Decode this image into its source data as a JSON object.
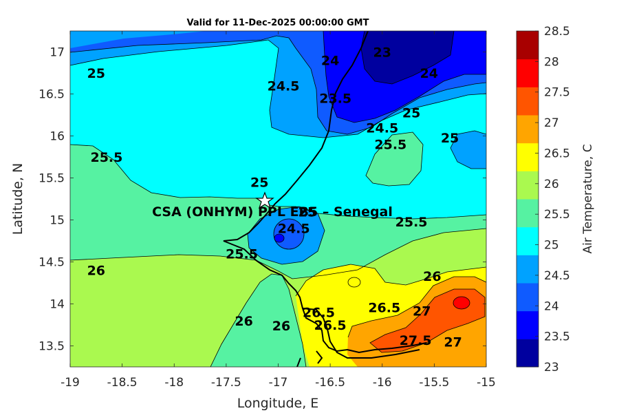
{
  "chart_data": {
    "type": "heatmap",
    "title": "Valid for 11-Dec-2025 00:00:00 GMT",
    "xlabel": "Longitude, E",
    "ylabel": "Latitude, N",
    "xlim": [
      -19,
      -15
    ],
    "ylim": [
      13.25,
      17.25
    ],
    "xticks": [
      "-19",
      "-18.5",
      "-18",
      "-17.5",
      "-17",
      "-16.5",
      "-16",
      "-15.5",
      "-15"
    ],
    "yticks": [
      "13.5",
      "14",
      "14.5",
      "15",
      "15.5",
      "16",
      "16.5",
      "17"
    ],
    "colorbar": {
      "label": "Air Temperature, C",
      "levels": [
        23,
        23.5,
        24,
        24.5,
        25,
        25.5,
        26,
        26.5,
        27,
        27.5,
        28,
        28.5
      ],
      "ticks": [
        "23",
        "23.5",
        "24",
        "24.5",
        "25",
        "25.5",
        "26",
        "26.5",
        "27",
        "27.5",
        "28",
        "28.5"
      ],
      "colors": [
        "#00009f",
        "#0000ff",
        "#0f5bff",
        "#00a2ff",
        "#00ffff",
        "#56f2a2",
        "#aaf94f",
        "#ffff00",
        "#ffa500",
        "#ff5500",
        "#ff0000",
        "#a80000"
      ]
    },
    "site": {
      "name": "CSA (ONHYM) PPL EB5 – Senegal",
      "lon": -17.12,
      "lat": 15.23
    },
    "contour_labels": [
      {
        "text": "25",
        "lon": -18.75,
        "lat": 16.75
      },
      {
        "text": "24.5",
        "lon": -16.95,
        "lat": 16.6
      },
      {
        "text": "24",
        "lon": -16.5,
        "lat": 16.9
      },
      {
        "text": "23",
        "lon": -16.0,
        "lat": 17.0
      },
      {
        "text": "23.5",
        "lon": -16.45,
        "lat": 16.45
      },
      {
        "text": "24",
        "lon": -15.55,
        "lat": 16.75
      },
      {
        "text": "24.5",
        "lon": -16.0,
        "lat": 16.1
      },
      {
        "text": "25",
        "lon": -15.72,
        "lat": 16.28
      },
      {
        "text": "25.5",
        "lon": -15.92,
        "lat": 15.9
      },
      {
        "text": "25",
        "lon": -15.35,
        "lat": 15.98
      },
      {
        "text": "25.5",
        "lon": -18.65,
        "lat": 15.75
      },
      {
        "text": "25",
        "lon": -17.18,
        "lat": 15.45
      },
      {
        "text": "25",
        "lon": -16.72,
        "lat": 15.1
      },
      {
        "text": "24.5",
        "lon": -16.85,
        "lat": 14.9
      },
      {
        "text": "25.5",
        "lon": -17.35,
        "lat": 14.6
      },
      {
        "text": "25.5",
        "lon": -15.72,
        "lat": 14.98
      },
      {
        "text": "26",
        "lon": -18.75,
        "lat": 14.4
      },
      {
        "text": "26",
        "lon": -15.52,
        "lat": 14.33
      },
      {
        "text": "26.5",
        "lon": -15.98,
        "lat": 13.96
      },
      {
        "text": "27",
        "lon": -15.62,
        "lat": 13.92
      },
      {
        "text": "27.5",
        "lon": -15.68,
        "lat": 13.57
      },
      {
        "text": "27",
        "lon": -15.32,
        "lat": 13.55
      },
      {
        "text": "26",
        "lon": -17.33,
        "lat": 13.8
      },
      {
        "text": "26",
        "lon": -16.97,
        "lat": 13.74
      },
      {
        "text": "26.5",
        "lon": -16.61,
        "lat": 13.9
      },
      {
        "text": "26.5",
        "lon": -16.5,
        "lat": 13.75
      }
    ]
  }
}
